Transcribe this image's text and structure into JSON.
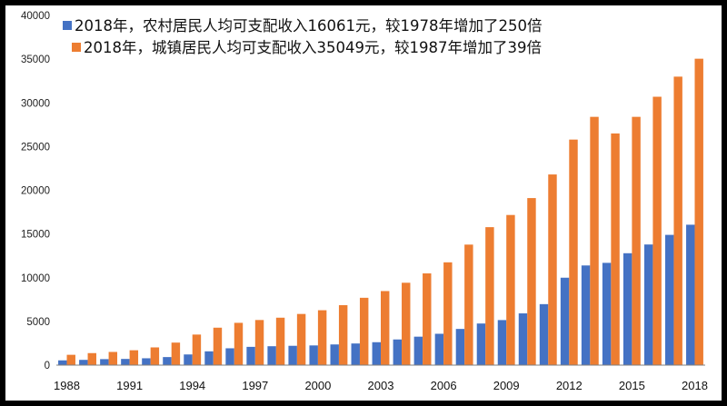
{
  "chart_data": {
    "type": "bar",
    "title": "",
    "xlabel": "",
    "ylabel": "",
    "ylim": [
      0,
      40000
    ],
    "yticks": [
      0,
      5000,
      10000,
      15000,
      20000,
      25000,
      30000,
      35000,
      40000
    ],
    "grid": false,
    "legend_position": "top-left",
    "categories": [
      "1988",
      "1989",
      "1990",
      "1991",
      "1992",
      "1993",
      "1994",
      "1995",
      "1996",
      "1997",
      "1998",
      "1999",
      "2000",
      "2001",
      "2002",
      "2003",
      "2004",
      "2005",
      "2006",
      "2007",
      "2008",
      "2009",
      "2010",
      "2011",
      "2012",
      "2013",
      "2014",
      "2015",
      "2016",
      "2017",
      "2018"
    ],
    "xtick_labels": [
      "1988",
      "1991",
      "1994",
      "1997",
      "2000",
      "2003",
      "2006",
      "2009",
      "2012",
      "2015",
      "2018"
    ],
    "series": [
      {
        "name": "2018年，农村居民人均可支配收入16061元，较1978年增加了250倍",
        "color": "#4472C4",
        "values": [
          545,
          602,
          686,
          709,
          784,
          922,
          1221,
          1578,
          1926,
          2090,
          2162,
          2210,
          2253,
          2366,
          2476,
          2622,
          2936,
          3255,
          3587,
          4140,
          4761,
          5153,
          5919,
          6977,
          10000,
          11400,
          11700,
          12800,
          13800,
          14900,
          16061
        ]
      },
      {
        "name": "2018年，城镇居民人均可支配收入35049元，较1987年增加了39倍",
        "color": "#ED7D31",
        "values": [
          1181,
          1376,
          1510,
          1701,
          2027,
          2577,
          3496,
          4283,
          4839,
          5160,
          5425,
          5854,
          6280,
          6860,
          7703,
          8472,
          9422,
          10493,
          11759,
          13786,
          15781,
          17175,
          19109,
          21810,
          25800,
          28400,
          26500,
          28400,
          30700,
          33000,
          35049
        ]
      }
    ]
  }
}
